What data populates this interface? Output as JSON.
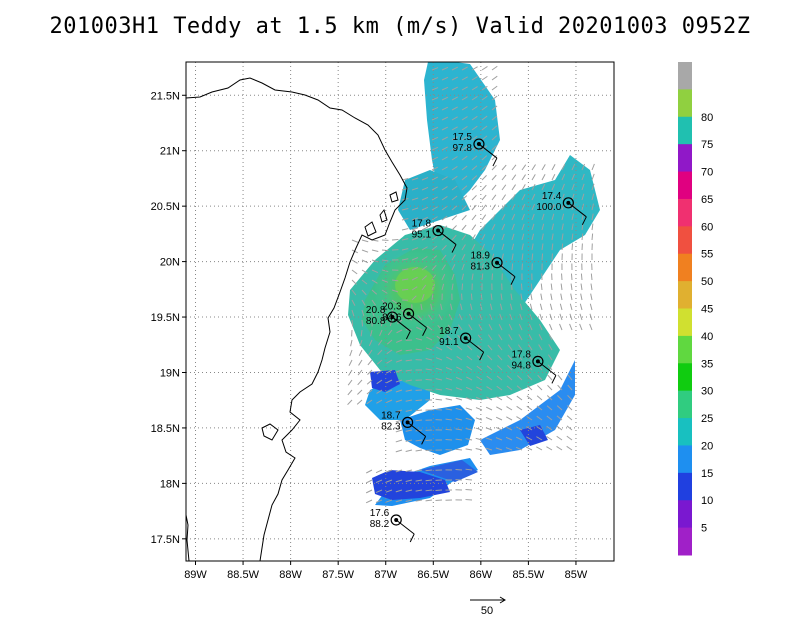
{
  "title": "201003H1 Teddy at 1.5 km (m/s) Valid 20201003 0952Z",
  "chart_data": {
    "type": "wind-analysis-map",
    "lon_range": [
      -89.1,
      -84.6
    ],
    "lat_range": [
      17.3,
      21.8
    ],
    "x_ticks": [
      {
        "v": -89,
        "label": "89W"
      },
      {
        "v": -88.5,
        "label": "88.5W"
      },
      {
        "v": -88,
        "label": "88W"
      },
      {
        "v": -87.5,
        "label": "87.5W"
      },
      {
        "v": -87,
        "label": "87W"
      },
      {
        "v": -86.5,
        "label": "86.5W"
      },
      {
        "v": -86,
        "label": "86W"
      },
      {
        "v": -85.5,
        "label": "85.5W"
      },
      {
        "v": -85,
        "label": "85W"
      }
    ],
    "y_ticks": [
      {
        "v": 17.5,
        "label": "17.5N"
      },
      {
        "v": 18,
        "label": "18N"
      },
      {
        "v": 18.5,
        "label": "18.5N"
      },
      {
        "v": 19,
        "label": "19N"
      },
      {
        "v": 19.5,
        "label": "19.5N"
      },
      {
        "v": 20,
        "label": "20N"
      },
      {
        "v": 20.5,
        "label": "20.5N"
      },
      {
        "v": 21,
        "label": "21N"
      },
      {
        "v": 21.5,
        "label": "21.5N"
      }
    ],
    "grid": true,
    "colorbar": {
      "labels": [
        "5",
        "10",
        "15",
        "20",
        "25",
        "30",
        "35",
        "40",
        "45",
        "50",
        "55",
        "60",
        "65",
        "70",
        "75",
        "80"
      ],
      "colors": [
        "#a020c8",
        "#7a18d0",
        "#2040e0",
        "#1e8ff0",
        "#18c0c0",
        "#30cc80",
        "#10cc10",
        "#60d840",
        "#d0e030",
        "#e0b030",
        "#f08020",
        "#f05040",
        "#f03070",
        "#e00080",
        "#9018c8",
        "#20c0b0",
        "#90d040",
        "#a8a8a8"
      ]
    },
    "stations": [
      {
        "lon": -86.02,
        "lat": 21.06,
        "t": "17.5",
        "p": "97.8"
      },
      {
        "lon": -85.08,
        "lat": 20.53,
        "t": "17.4",
        "p": "100.0"
      },
      {
        "lon": -86.45,
        "lat": 20.28,
        "t": "17.8",
        "p": "95.1"
      },
      {
        "lon": -85.83,
        "lat": 19.99,
        "t": "18.9",
        "p": "81.3"
      },
      {
        "lon": -86.93,
        "lat": 19.5,
        "t": "20.8",
        "p": "80.8"
      },
      {
        "lon": -86.76,
        "lat": 19.53,
        "t": "20.3",
        "p": "84.6"
      },
      {
        "lon": -86.16,
        "lat": 19.31,
        "t": "18.7",
        "p": "91.1"
      },
      {
        "lon": -85.4,
        "lat": 19.1,
        "t": "17.8",
        "p": "94.8"
      },
      {
        "lon": -86.77,
        "lat": 18.55,
        "t": "18.7",
        "p": "82.3"
      },
      {
        "lon": -86.89,
        "lat": 17.67,
        "t": "17.6",
        "p": "88.2"
      }
    ],
    "storm_center": {
      "lon": -86.79,
      "lat": 19.55
    },
    "reference_vector": {
      "label": "50"
    }
  }
}
